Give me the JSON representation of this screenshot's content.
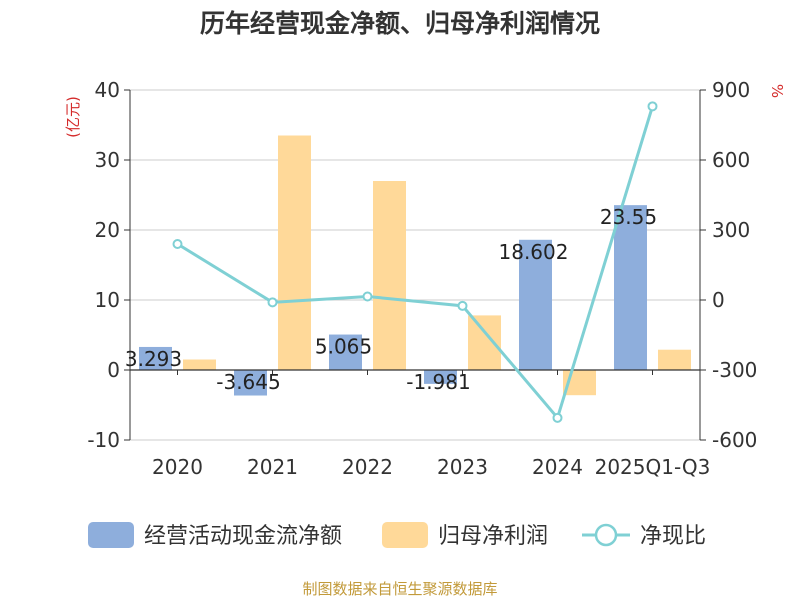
{
  "chart_data": {
    "type": "bar",
    "title": "历年经营现金净额、归母净利润情况",
    "categories": [
      "2020",
      "2021",
      "2022",
      "2023",
      "2024",
      "2025Q1-Q3"
    ],
    "y_left": {
      "unit_label": "(亿元)",
      "ylim": [
        -10,
        40
      ],
      "ticks": [
        -10,
        0,
        10,
        20,
        30,
        40
      ]
    },
    "y_right": {
      "unit_label": "%",
      "ylim": [
        -600,
        900
      ],
      "ticks": [
        -600,
        -300,
        0,
        300,
        600,
        900
      ]
    },
    "series": [
      {
        "name": "经营活动现金流净额",
        "kind": "bar",
        "axis": "left",
        "color": "#8eaedc",
        "values": [
          3.293,
          -3.645,
          5.065,
          -1.981,
          18.602,
          23.55
        ],
        "labels": [
          "3.293",
          "-3.645",
          "5.065",
          "-1.981",
          "18.602",
          "23.55"
        ]
      },
      {
        "name": "归母净利润",
        "kind": "bar",
        "axis": "left",
        "color": "#ffd999",
        "values": [
          1.5,
          33.5,
          27.0,
          7.8,
          -3.6,
          2.9
        ]
      },
      {
        "name": "净现比",
        "kind": "line",
        "axis": "right",
        "color": "#7fd0d4",
        "values": [
          240,
          -10,
          15,
          -25,
          -505,
          830
        ]
      }
    ],
    "grid": true,
    "legend_position": "bottom"
  },
  "source": "制图数据来自恒生聚源数据库",
  "colors": {
    "axis_unit": "#d42a2a",
    "source_text": "#c29a3a",
    "grid": "#cccccc",
    "axis": "#333333"
  }
}
